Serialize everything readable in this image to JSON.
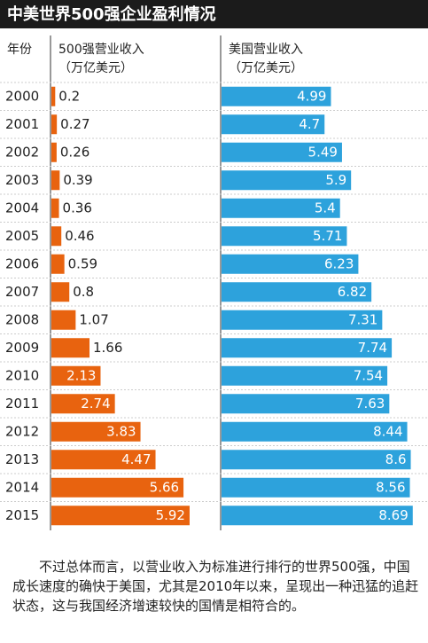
{
  "chart_data": {
    "type": "bar",
    "orientation": "horizontal",
    "title": "中美世界500强企业盈利情况",
    "category_label": "年份",
    "categories": [
      "2000",
      "2001",
      "2002",
      "2003",
      "2004",
      "2005",
      "2006",
      "2007",
      "2008",
      "2009",
      "2010",
      "2011",
      "2012",
      "2013",
      "2014",
      "2015"
    ],
    "series": [
      {
        "name": "500强营业收入",
        "unit": "（万亿美元）",
        "color": "#e8630f",
        "xlim": [
          0,
          6.6
        ],
        "values": [
          0.2,
          0.27,
          0.26,
          0.39,
          0.36,
          0.46,
          0.59,
          0.8,
          1.07,
          1.66,
          2.13,
          2.74,
          3.83,
          4.47,
          5.66,
          5.92
        ]
      },
      {
        "name": "美国营业收入",
        "unit": "（万亿美元）",
        "color": "#2da2dc",
        "xlim": [
          0,
          9.3
        ],
        "values": [
          4.99,
          4.7,
          5.49,
          5.9,
          5.4,
          5.71,
          6.23,
          6.82,
          7.31,
          7.74,
          7.54,
          7.63,
          8.44,
          8.6,
          8.56,
          8.69
        ]
      }
    ],
    "annotation": "不过总体而言，以营业收入为标准进行排行的世界500强，中国成长速度的确快于美国，尤其是2010年以来，呈现出一种迅猛的追赶状态，这与我国经济增速较快的国情是相符合的。"
  }
}
